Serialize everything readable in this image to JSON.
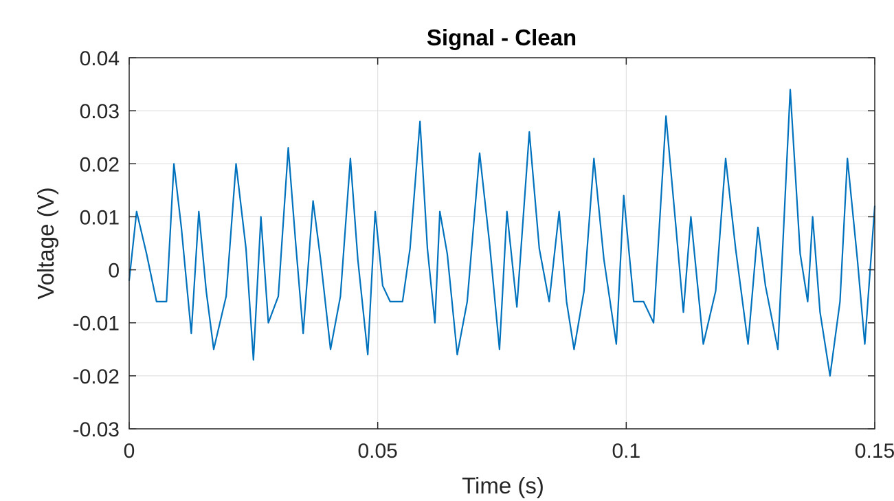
{
  "chart_data": {
    "type": "line",
    "title": "Signal - Clean",
    "xlabel": "Time (s)",
    "ylabel": "Voltage (V)",
    "xlim": [
      0,
      0.15
    ],
    "ylim": [
      -0.03,
      0.04
    ],
    "x_ticks": [
      0,
      0.05,
      0.1,
      0.15
    ],
    "x_tick_labels": [
      "0",
      "0.05",
      "0.1",
      "0.15"
    ],
    "y_ticks": [
      -0.03,
      -0.02,
      -0.01,
      0,
      0.01,
      0.02,
      0.03,
      0.04
    ],
    "y_tick_labels": [
      "-0.03",
      "-0.02",
      "-0.01",
      "0",
      "0.01",
      "0.02",
      "0.03",
      "0.04"
    ],
    "grid": true,
    "series": [
      {
        "color": "#0072BD",
        "x": [
          0.0,
          0.0015,
          0.0035,
          0.0055,
          0.0075,
          0.009,
          0.0105,
          0.0125,
          0.014,
          0.0155,
          0.017,
          0.0195,
          0.0215,
          0.0235,
          0.025,
          0.0265,
          0.028,
          0.03,
          0.032,
          0.0335,
          0.035,
          0.037,
          0.0385,
          0.0405,
          0.0425,
          0.0445,
          0.046,
          0.048,
          0.0495,
          0.051,
          0.0525,
          0.055,
          0.0565,
          0.0585,
          0.06,
          0.0615,
          0.0625,
          0.064,
          0.066,
          0.068,
          0.0705,
          0.0725,
          0.0745,
          0.076,
          0.078,
          0.0805,
          0.0825,
          0.0845,
          0.0865,
          0.088,
          0.0895,
          0.0915,
          0.0935,
          0.0955,
          0.098,
          0.0995,
          0.1015,
          0.1035,
          0.1055,
          0.108,
          0.11,
          0.1115,
          0.113,
          0.1155,
          0.118,
          0.12,
          0.122,
          0.1245,
          0.1265,
          0.128,
          0.1305,
          0.133,
          0.135,
          0.1365,
          0.1375,
          0.139,
          0.141,
          0.143,
          0.1445,
          0.1465,
          0.148,
          0.15
        ],
        "y": [
          -0.002,
          0.011,
          0.003,
          -0.006,
          -0.006,
          0.02,
          0.008,
          -0.012,
          0.011,
          -0.004,
          -0.015,
          -0.005,
          0.02,
          0.004,
          -0.017,
          0.01,
          -0.01,
          -0.005,
          0.023,
          0.005,
          -0.012,
          0.013,
          0.002,
          -0.015,
          -0.005,
          0.021,
          0.002,
          -0.016,
          0.011,
          -0.003,
          -0.006,
          -0.006,
          0.004,
          0.028,
          0.004,
          -0.01,
          0.011,
          0.003,
          -0.016,
          -0.006,
          0.022,
          0.005,
          -0.015,
          0.011,
          -0.007,
          0.026,
          0.004,
          -0.006,
          0.011,
          -0.006,
          -0.015,
          -0.004,
          0.021,
          0.002,
          -0.014,
          0.014,
          -0.006,
          -0.006,
          -0.01,
          0.029,
          0.008,
          -0.008,
          0.01,
          -0.014,
          -0.004,
          0.021,
          0.004,
          -0.014,
          0.008,
          -0.003,
          -0.015,
          0.034,
          0.003,
          -0.006,
          0.01,
          -0.008,
          -0.02,
          -0.006,
          0.021,
          0.002,
          -0.014,
          0.012
        ]
      }
    ]
  }
}
